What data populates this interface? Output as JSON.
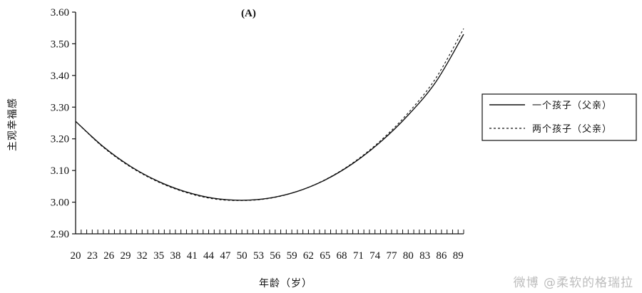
{
  "chart_data": {
    "type": "line",
    "panel_label": "(A)",
    "xlabel": "年龄（岁）",
    "ylabel": "主观幸福感",
    "ylim": [
      2.9,
      3.6
    ],
    "yticks": [
      "2.90",
      "3.00",
      "3.10",
      "3.20",
      "3.30",
      "3.40",
      "3.50",
      "3.60"
    ],
    "xlim": [
      20,
      90
    ],
    "xticks": [
      "20",
      "23",
      "26",
      "29",
      "32",
      "35",
      "38",
      "41",
      "44",
      "47",
      "50",
      "53",
      "56",
      "59",
      "62",
      "65",
      "68",
      "71",
      "74",
      "77",
      "80",
      "83",
      "86",
      "89"
    ],
    "legend_position": "right",
    "series": [
      {
        "name": "一个孩子（父亲）",
        "style": "solid",
        "x": [
          20,
          25,
          30,
          35,
          40,
          45,
          50,
          55,
          60,
          65,
          70,
          75,
          80,
          85,
          90
        ],
        "y": [
          3.255,
          3.175,
          3.112,
          3.065,
          3.032,
          3.012,
          3.006,
          3.013,
          3.034,
          3.07,
          3.122,
          3.19,
          3.275,
          3.38,
          3.53
        ]
      },
      {
        "name": "两个孩子（父亲）",
        "style": "dashed",
        "x": [
          20,
          25,
          30,
          35,
          40,
          45,
          50,
          55,
          60,
          65,
          70,
          75,
          80,
          85,
          90
        ],
        "y": [
          3.255,
          3.173,
          3.11,
          3.063,
          3.03,
          3.01,
          3.005,
          3.012,
          3.034,
          3.071,
          3.124,
          3.194,
          3.282,
          3.392,
          3.548
        ]
      }
    ]
  },
  "watermark": "微博 @柔软的格瑞拉"
}
